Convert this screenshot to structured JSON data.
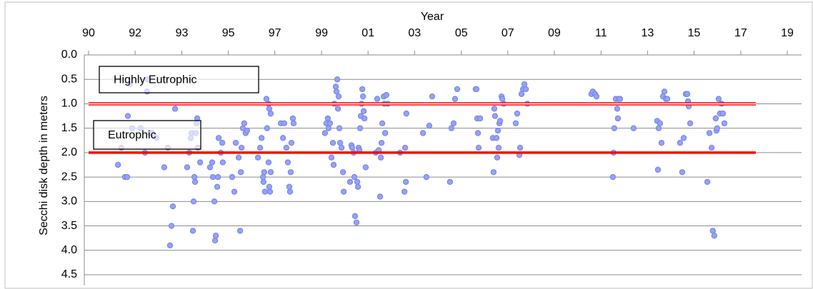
{
  "chart_data": {
    "type": "scatter",
    "x_label": "Year",
    "y_label": "Secchi disk depth in meters",
    "y_inverted": true,
    "grid": true,
    "color": "#9d9dff",
    "edge_color": "#6f8fe0",
    "hlines": [
      1.0,
      2.0
    ],
    "hline_color": "#ff0000",
    "hline_styles": [
      "double",
      "solid"
    ],
    "annotations": [
      "Highly Eutrophic",
      "Eutrophic"
    ],
    "xlim": [
      1990,
      2019
    ],
    "xticks": [
      {
        "value": 1990,
        "label": "90"
      },
      {
        "value": 1991.93,
        "label": "92"
      },
      {
        "value": 1993.87,
        "label": "93"
      },
      {
        "value": 1995.8,
        "label": "95"
      },
      {
        "value": 1997.73,
        "label": "97"
      },
      {
        "value": 1999.67,
        "label": "99"
      },
      {
        "value": 2001.6,
        "label": "01"
      },
      {
        "value": 2003.53,
        "label": "03"
      },
      {
        "value": 2005.47,
        "label": "05"
      },
      {
        "value": 2007.4,
        "label": "07"
      },
      {
        "value": 2009.33,
        "label": "09"
      },
      {
        "value": 2011.27,
        "label": "11"
      },
      {
        "value": 2013.2,
        "label": "13"
      },
      {
        "value": 2015.13,
        "label": "15"
      },
      {
        "value": 2017.07,
        "label": "17"
      },
      {
        "value": 2019,
        "label": "19"
      }
    ],
    "ylim": [
      0,
      4.5
    ],
    "yticks": [
      {
        "value": 0,
        "label": "0.0"
      },
      0.5,
      {
        "value": 1,
        "label": "1.0"
      },
      1.5,
      {
        "value": 2,
        "label": "2.0"
      },
      2.5,
      {
        "value": 3,
        "label": "3.0"
      },
      3.5,
      {
        "value": 4,
        "label": "4.0"
      },
      4.5
    ],
    "x": [
      1991.22,
      1991.36,
      1991.51,
      1991.6,
      1991.63,
      1991.72,
      1991.81,
      1992.16,
      1992.34,
      1992.43,
      1992.46,
      1992.55,
      1992.64,
      1992.7,
      1992.82,
      1993.14,
      1993.29,
      1993.38,
      1993.44,
      1993.5,
      1993.59,
      1994.09,
      1994.18,
      1994.24,
      1994.27,
      1994.33,
      1994.36,
      1994.39,
      1994.42,
      1994.45,
      1994.48,
      1994.51,
      1994.54,
      1994.63,
      1995.04,
      1995.13,
      1995.16,
      1995.22,
      1995.25,
      1995.28,
      1995.34,
      1995.37,
      1995.4,
      1995.49,
      1995.55,
      1995.57,
      1995.96,
      1996.05,
      1996.11,
      1996.23,
      1996.29,
      1996.32,
      1996.35,
      1996.4,
      1996.46,
      1996.52,
      1996.58,
      1997.03,
      1997.12,
      1997.18,
      1997.24,
      1997.26,
      1997.29,
      1997.32,
      1997.38,
      1997.41,
      1997.47,
      1997.47,
      1997.5,
      1997.5,
      1997.53,
      1997.56,
      1997.56,
      1997.98,
      1998.07,
      1998.12,
      1998.21,
      1998.27,
      1998.33,
      1998.36,
      1998.39,
      1998.42,
      1998.48,
      1998.51,
      1999.81,
      1999.87,
      1999.93,
      1999.96,
      2000.02,
      2000.08,
      2000.14,
      2000.17,
      2000.2,
      2000.26,
      2000.29,
      2000.32,
      2000.35,
      2000.38,
      2000.41,
      2000.44,
      2000.5,
      2000.56,
      2000.59,
      2000.85,
      2000.91,
      2000.94,
      2001.0,
      2001.03,
      2001.06,
      2001.12,
      2001.15,
      2001.18,
      2001.21,
      2001.24,
      2001.27,
      2001.3,
      2001.33,
      2001.36,
      2001.39,
      2001.42,
      2001.45,
      2001.5,
      2001.92,
      2001.98,
      2002.04,
      2002.1,
      2002.13,
      2002.16,
      2002.19,
      2002.25,
      2002.28,
      2002.31,
      2002.36,
      2002.42,
      2002.93,
      2003.11,
      2003.14,
      2003.17,
      2003.19,
      2003.88,
      2004.02,
      2004.14,
      2004.26,
      2005.0,
      2005.06,
      2005.15,
      2005.21,
      2005.3,
      2006.07,
      2006.1,
      2006.13,
      2006.16,
      2006.19,
      2006.25,
      2006.78,
      2006.81,
      2006.84,
      2006.87,
      2006.93,
      2006.96,
      2006.99,
      2007.02,
      2007.05,
      2007.08,
      2007.14,
      2007.17,
      2007.23,
      2007.73,
      2007.79,
      2007.88,
      2007.91,
      2007.97,
      2008.03,
      2008.09,
      2008.15,
      2008.21,
      2010.87,
      2010.93,
      2011.02,
      2011.08,
      2011.76,
      2011.79,
      2011.82,
      2011.88,
      2011.94,
      2011.97,
      2012.0,
      2012.06,
      2012.62,
      2013.6,
      2013.63,
      2013.66,
      2013.72,
      2013.78,
      2013.84,
      2013.9,
      2013.96,
      2014.02,
      2014.55,
      2014.64,
      2014.7,
      2014.79,
      2014.85,
      2014.88,
      2014.91,
      2014.97,
      2015.68,
      2015.77,
      2015.86,
      2015.91,
      2015.97,
      2016.03,
      2016.06,
      2016.09,
      2016.15,
      2016.21,
      2016.27,
      2016.33,
      2016.39
    ],
    "values": [
      2.25,
      1.9,
      2.5,
      2.5,
      1.25,
      0.6,
      1.5,
      1.5,
      2.0,
      0.75,
      0.5,
      1.6,
      1.6,
      1.65,
      1.7,
      2.3,
      1.9,
      3.9,
      3.5,
      3.1,
      1.1,
      2.3,
      2.0,
      1.7,
      1.6,
      3.6,
      3.0,
      2.5,
      2.6,
      1.6,
      1.4,
      1.3,
      1.9,
      2.2,
      2.3,
      2.2,
      2.5,
      3.0,
      3.8,
      3.7,
      2.7,
      2.5,
      1.7,
      2.0,
      1.8,
      2.2,
      2.5,
      2.8,
      1.8,
      2.1,
      3.6,
      2.4,
      1.9,
      1.5,
      1.4,
      1.6,
      1.55,
      2.1,
      1.9,
      1.7,
      2.5,
      2.6,
      2.4,
      2.8,
      0.9,
      1.5,
      1.0,
      2.2,
      1.1,
      2.7,
      2.8,
      1.2,
      2.4,
      1.4,
      1.7,
      1.4,
      1.9,
      2.2,
      2.7,
      2.8,
      2.4,
      1.8,
      1.3,
      1.4,
      1.6,
      1.4,
      1.3,
      1.5,
      1.4,
      2.1,
      1.8,
      2.25,
      1.0,
      0.65,
      0.75,
      0.5,
      1.1,
      0.85,
      1.5,
      1.8,
      1.9,
      2.4,
      2.8,
      2.6,
      1.85,
      1.9,
      2.0,
      2.5,
      3.3,
      3.43,
      2.6,
      2.7,
      1.9,
      1.95,
      1.5,
      1.25,
      1.0,
      0.7,
      0.85,
      1.15,
      1.3,
      2.3,
      2.0,
      0.9,
      1.95,
      2.9,
      2.1,
      1.8,
      1.4,
      0.85,
      1.0,
      1.6,
      0.82,
      1.0,
      2.0,
      2.8,
      1.9,
      2.6,
      1.2,
      1.6,
      2.5,
      1.45,
      0.85,
      2.6,
      1.5,
      1.4,
      0.9,
      0.7,
      0.7,
      0.7,
      1.3,
      1.6,
      1.9,
      1.3,
      1.7,
      2.4,
      1.1,
      1.25,
      1.7,
      2.1,
      1.55,
      1.9,
      1.4,
      1.35,
      0.85,
      0.9,
      1.0,
      1.4,
      1.2,
      2.05,
      1.9,
      0.8,
      0.7,
      0.6,
      0.7,
      1.0,
      0.8,
      0.75,
      0.8,
      0.85,
      2.5,
      2.0,
      1.5,
      0.9,
      1.1,
      1.3,
      0.9,
      0.9,
      1.5,
      1.35,
      2.35,
      1.5,
      1.4,
      1.8,
      0.85,
      0.75,
      0.9,
      0.9,
      1.8,
      2.4,
      1.7,
      0.8,
      0.8,
      0.95,
      1.05,
      1.4,
      2.6,
      1.6,
      1.9,
      3.6,
      3.7,
      1.3,
      1.55,
      1.5,
      0.9,
      1.2,
      1.0,
      1.2,
      1.4
    ]
  }
}
